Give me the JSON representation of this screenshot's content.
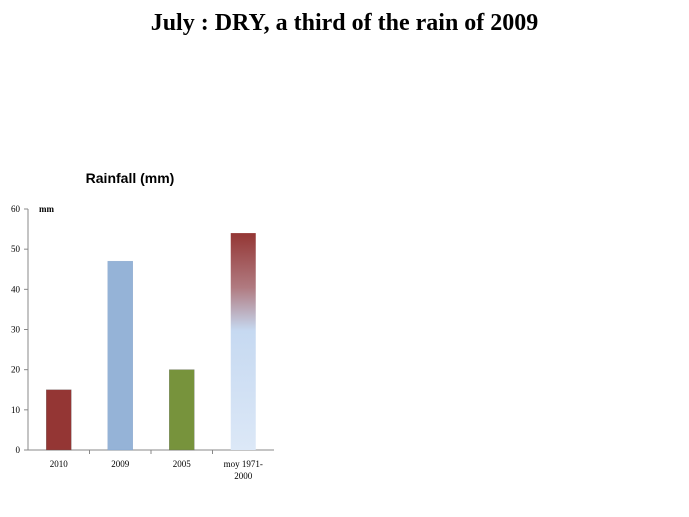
{
  "slide": {
    "title": "July : DRY, a third of the rain of 2009"
  },
  "chart_data": {
    "type": "bar",
    "title": "Rainfall (mm)",
    "unit_label": "mm",
    "categories": [
      "2010",
      "2009",
      "2005",
      "moy 1971-2000"
    ],
    "category_lines": [
      [
        "2010"
      ],
      [
        "2009"
      ],
      [
        "2005"
      ],
      [
        "moy 1971-",
        "2000"
      ]
    ],
    "values": [
      15,
      47,
      20,
      54
    ],
    "colors": [
      "#943634",
      "#95b3d7",
      "#77933c",
      "gradient:#943634-#c6d9f1"
    ],
    "ylim": [
      0,
      60
    ],
    "yticks": [
      0,
      10,
      20,
      30,
      40,
      50,
      60
    ],
    "grid": false,
    "legend": "none"
  }
}
